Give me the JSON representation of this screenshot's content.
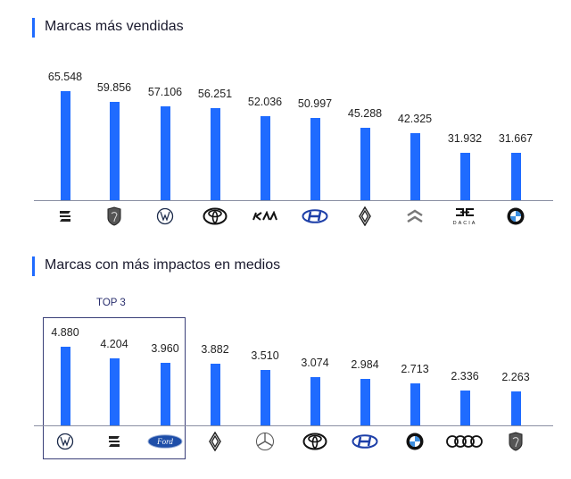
{
  "chart_data": [
    {
      "type": "bar",
      "title": "Marcas más vendidas",
      "categories": [
        "SEAT",
        "Peugeot",
        "Volkswagen",
        "Toyota",
        "Kia",
        "Hyundai",
        "Renault",
        "Citroën",
        "Dacia",
        "BMW"
      ],
      "values": [
        65548,
        59856,
        57106,
        56251,
        52036,
        50997,
        45288,
        42325,
        31932,
        31667
      ],
      "labels": [
        "65.548",
        "59.856",
        "57.106",
        "56.251",
        "52.036",
        "50.997",
        "45.288",
        "42.325",
        "31.932",
        "31.667"
      ],
      "category_axis": "logos",
      "grid": false,
      "color": "#1f6bff"
    },
    {
      "type": "bar",
      "title": "Marcas con más impactos en medios",
      "annotation": "TOP 3",
      "categories": [
        "Volkswagen",
        "SEAT",
        "Ford",
        "Renault",
        "Mercedes-Benz",
        "Toyota",
        "Hyundai",
        "BMW",
        "Audi",
        "Peugeot"
      ],
      "values": [
        4880,
        4204,
        3960,
        3882,
        3510,
        3074,
        2984,
        2713,
        2336,
        2263
      ],
      "labels": [
        "4.880",
        "4.204",
        "3.960",
        "3.882",
        "3.510",
        "3.074",
        "2.984",
        "2.713",
        "2.336",
        "2.263"
      ],
      "category_axis": "logos",
      "grid": false,
      "color": "#1f6bff",
      "highlight_color": "#2a2f6e"
    }
  ]
}
